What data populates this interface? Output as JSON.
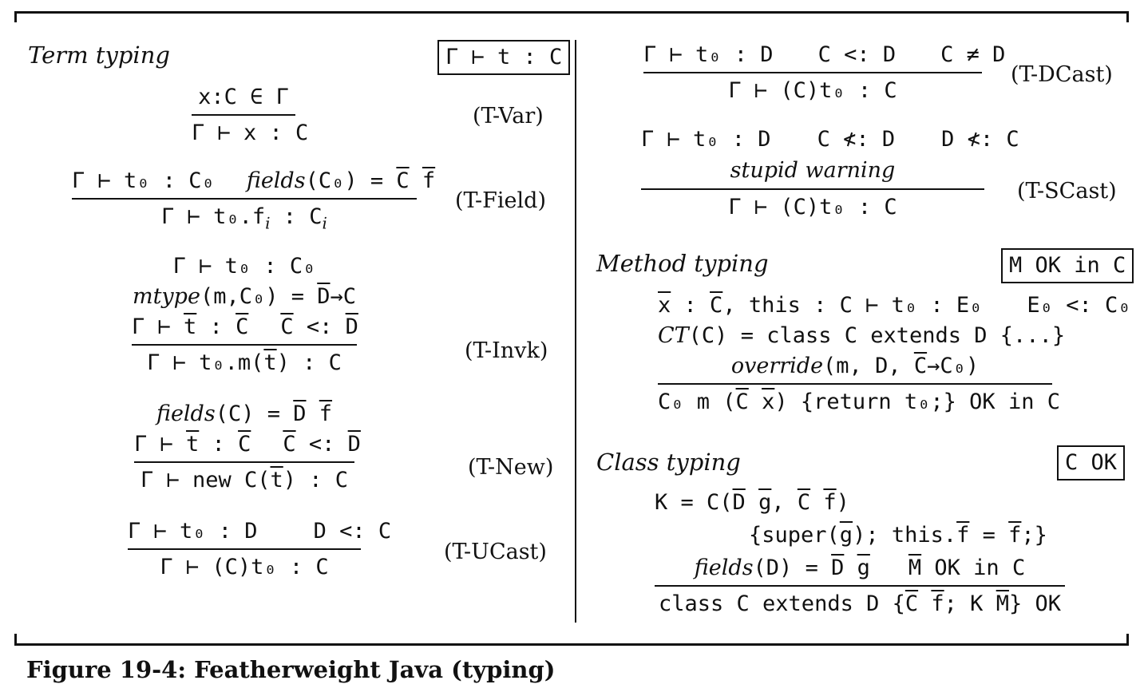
{
  "caption": "Figure 19-4: Featherweight Java (typing)",
  "term_typing": {
    "title": "Term typing",
    "judgment": "Γ ⊢ t : C"
  },
  "method_typing": {
    "title": "Method typing",
    "judgment": "M OK in C"
  },
  "class_typing": {
    "title": "Class typing",
    "judgment": "C OK"
  },
  "rules": {
    "tvar": {
      "name": "(T-Var)",
      "premise": "x:C ∈ Γ",
      "conclusion": "Γ ⊢ x : C"
    },
    "tfield": {
      "name": "(T-Field)",
      "p1": "Γ ⊢ t₀ : C₀",
      "p2_fn": "fields",
      "p2_args": "(C₀) = ",
      "p2_c": "C",
      "p2_f": "f",
      "concl_head": "Γ ⊢ t₀.f",
      "concl_i": "i",
      "concl_mid": " : C",
      "concl_i2": "i"
    },
    "tinvk": {
      "name": "(T-Invk)",
      "p1": "Γ ⊢ t₀ : C₀",
      "p2_fn": "mtype",
      "p2_args": "(m,C₀) = ",
      "p2_d": "D",
      "p2_rest": "→C",
      "p3_a": "Γ ⊢ ",
      "p3_t": "t",
      "p3_b": " : ",
      "p3_c": "C",
      "p3_c2": "C",
      "p3_sub": " <: ",
      "p3_d": "D",
      "concl_a": "Γ ⊢ t₀.m(",
      "concl_t": "t",
      "concl_b": ") : C"
    },
    "tnew": {
      "name": "(T-New)",
      "p1_fn": "fields",
      "p1_args": "(C) = ",
      "p1_d": "D",
      "p1_f": "f",
      "p2_a": "Γ ⊢ ",
      "p2_t": "t",
      "p2_b": " : ",
      "p2_c": "C",
      "p2_c2": "C",
      "p2_sub": " <: ",
      "p2_d": "D",
      "concl_a": "Γ ⊢ new C(",
      "concl_t": "t",
      "concl_b": ") : C"
    },
    "tucast": {
      "name": "(T-UCast)",
      "p1": "Γ ⊢ t₀ : D",
      "p2": "D <: C",
      "conclusion": "Γ ⊢ (C)t₀ : C"
    },
    "tdcast": {
      "name": "(T-DCast)",
      "p1": "Γ ⊢ t₀ : D",
      "p2": "C <: D",
      "p3": "C ≠ D",
      "conclusion": "Γ ⊢ (C)t₀ : C"
    },
    "tscast": {
      "name": "(T-SCast)",
      "p1": "Γ ⊢ t₀ : D",
      "p2": "C ≮: D",
      "p3": "D ≮: C",
      "p4": "stupid warning",
      "conclusion": "Γ ⊢ (C)t₀ : C"
    },
    "method": {
      "p1_x": "x",
      "p1_a": " : ",
      "p1_c": "C",
      "p1_b": ", this : C ⊢ t₀ : E₀",
      "p1_c2": "E₀ <: C₀",
      "p2_fn": "CT",
      "p2_rest": "(C) = class C extends D {...}",
      "p3_fn": "override",
      "p3_a": "(m, D, ",
      "p3_c": "C",
      "p3_b": "→C₀)",
      "concl_a": "C₀ m (",
      "concl_c": "C",
      "concl_x": "x",
      "concl_b": ") {return t₀;} OK in C"
    },
    "class": {
      "k_a": "K = C(",
      "k_d": "D",
      "k_g": "g",
      "k_comma": ", ",
      "k_c": "C",
      "k_f": "f",
      "k_b": ")",
      "s_a": "{super(",
      "s_g": "g",
      "s_b": "); this.",
      "s_f": "f",
      "s_eq": " = ",
      "s_f2": "f",
      "s_c": ";}",
      "f_fn": "fields",
      "f_args": "(D) = ",
      "f_d": "D",
      "f_g": "g",
      "f_m": "M",
      "f_ok": " OK in C",
      "concl_a": "class C extends D {",
      "concl_c": "C",
      "concl_f": "f",
      "concl_k": "; K ",
      "concl_m": "M",
      "concl_b": "} OK"
    }
  }
}
